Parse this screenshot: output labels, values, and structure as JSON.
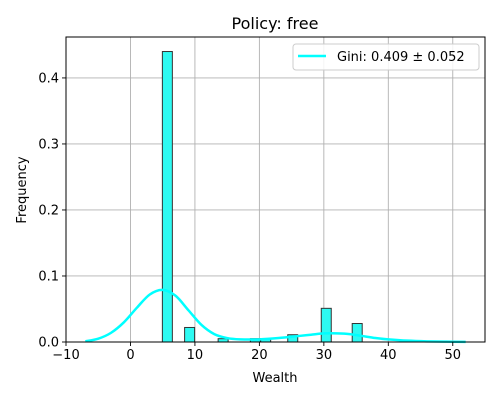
{
  "chart_data": {
    "type": "bar",
    "title": "Policy: free",
    "xlabel": "Wealth",
    "ylabel": "Frequency",
    "xlim": [
      -10,
      55
    ],
    "ylim": [
      0,
      0.462
    ],
    "grid": true,
    "legend_placement": "top-right",
    "xticks": [
      -10,
      0,
      10,
      20,
      30,
      40,
      50
    ],
    "yticks": [
      0.0,
      0.1,
      0.2,
      0.3,
      0.4
    ],
    "bar_width": 1.55,
    "histogram": [
      {
        "x0": 4.95,
        "value": 0.44
      },
      {
        "x0": 8.4,
        "value": 0.022
      },
      {
        "x0": 13.6,
        "value": 0.005
      },
      {
        "x0": 18.6,
        "value": 0.005
      },
      {
        "x0": 20.2,
        "value": 0.005
      },
      {
        "x0": 24.4,
        "value": 0.011
      },
      {
        "x0": 29.6,
        "value": 0.051
      },
      {
        "x0": 34.4,
        "value": 0.028
      }
    ],
    "series": [
      {
        "name": "Gini: 0.409 ± 0.052",
        "type": "line",
        "x": [
          -7,
          -5,
          -3,
          -1,
          1,
          3,
          5,
          7,
          9,
          11,
          13,
          15,
          17,
          20,
          23,
          26,
          28,
          30,
          32,
          34,
          36,
          38,
          40,
          43,
          46,
          49,
          52
        ],
        "y": [
          0.001,
          0.005,
          0.014,
          0.03,
          0.052,
          0.072,
          0.079,
          0.07,
          0.048,
          0.026,
          0.012,
          0.006,
          0.004,
          0.004,
          0.006,
          0.009,
          0.011,
          0.013,
          0.013,
          0.012,
          0.009,
          0.006,
          0.004,
          0.002,
          0.001,
          0.0005,
          0.0002
        ]
      }
    ],
    "colors": {
      "bar_fill": "#2efaf2",
      "bar_edge": "#333333",
      "kde_line": "#00ffff",
      "grid": "#b0b0b0"
    }
  }
}
